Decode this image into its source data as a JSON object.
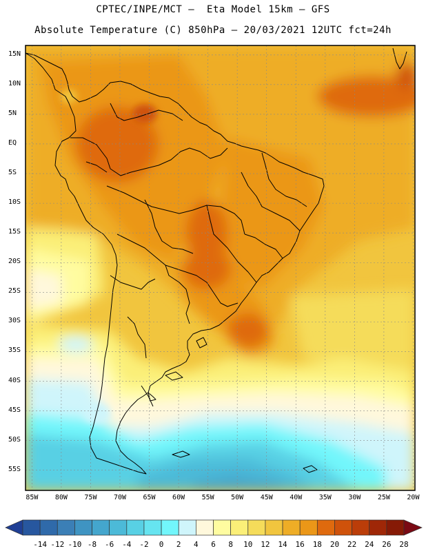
{
  "header": {
    "line1": "CPTEC/INPE/MCT –  Eta Model 15km – GFS",
    "line2": "Absolute Temperature (C) 850hPa – 20/03/2021 12UTC fct=24h"
  },
  "map": {
    "lat_labels": [
      "15N",
      "10N",
      "5N",
      "EQ",
      "5S",
      "10S",
      "15S",
      "20S",
      "25S",
      "30S",
      "35S",
      "40S",
      "45S",
      "50S",
      "55S"
    ],
    "lat_values": [
      15,
      10,
      5,
      0,
      -5,
      -10,
      -15,
      -20,
      -25,
      -30,
      -35,
      -40,
      -45,
      -50,
      -55
    ],
    "lon_labels": [
      "85W",
      "80W",
      "75W",
      "70W",
      "65W",
      "60W",
      "55W",
      "50W",
      "45W",
      "40W",
      "35W",
      "30W",
      "25W",
      "20W"
    ],
    "lon_values": [
      -85,
      -80,
      -75,
      -70,
      -65,
      -60,
      -55,
      -50,
      -45,
      -40,
      -35,
      -30,
      -25,
      -20
    ]
  },
  "colorbar": {
    "labels": [
      "-14",
      "-12",
      "-10",
      "-8",
      "-6",
      "-4",
      "-2",
      "0",
      "2",
      "4",
      "6",
      "8",
      "10",
      "12",
      "14",
      "16",
      "18",
      "20",
      "22",
      "24",
      "26",
      "28"
    ],
    "colors": [
      "#1f3f95",
      "#27579f",
      "#2f6aaa",
      "#3b7fb6",
      "#3f94c2",
      "#44a6cd",
      "#4cbad8",
      "#58d0e4",
      "#66e4f0",
      "#72f6fb",
      "#cff5fb",
      "#fff8dc",
      "#fffca0",
      "#fbef78",
      "#f5dc5a",
      "#f1c53e",
      "#eead26",
      "#eb9718",
      "#df6a0e",
      "#cf520b",
      "#bb3d09",
      "#9f2707",
      "#861a06",
      "#7a0a14"
    ]
  }
}
